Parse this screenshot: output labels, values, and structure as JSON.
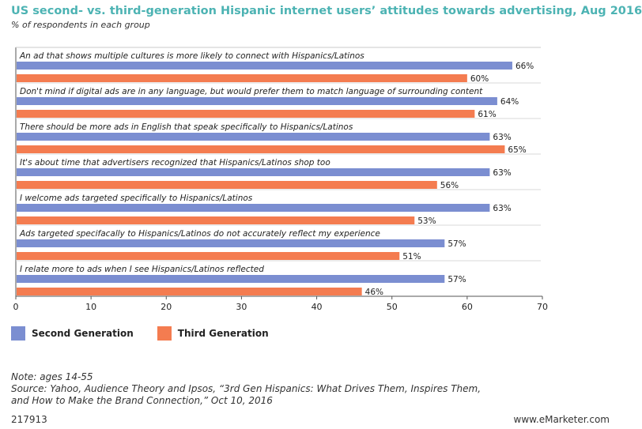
{
  "header": {
    "title": "US second- vs. third-generation Hispanic internet users’ attitudes towards advertising, Aug 2016",
    "subtitle": "% of respondents in each group"
  },
  "chart_data": {
    "type": "bar",
    "orientation": "horizontal",
    "categories": [
      "An ad that shows multiple cultures is more likely to connect with Hispanics/Latinos",
      "Don't mind if digital ads are in any language, but would prefer them to match language of surrounding content",
      "There should be more ads in English that speak specifically to Hispanics/Latinos",
      "It's about time that advertisers recognized that Hispanics/Latinos shop too",
      "I welcome ads targeted specifically to Hispanics/Latinos",
      "Ads targeted specifacally to Hispanics/Latinos do not accurately reflect my experience",
      "I relate more to ads when I see Hispanics/Latinos reflected"
    ],
    "series": [
      {
        "name": "Second Generation",
        "values": [
          66,
          64,
          63,
          63,
          63,
          57,
          57
        ],
        "color": "#7b8ed1"
      },
      {
        "name": "Third Generation",
        "values": [
          60,
          61,
          65,
          56,
          53,
          51,
          46
        ],
        "color": "#f47c50"
      }
    ],
    "xlim": [
      0,
      70
    ],
    "xticks": [
      "0",
      "10",
      "20",
      "30",
      "40",
      "50",
      "60",
      "70"
    ],
    "value_suffix": "%",
    "grid": false,
    "legend_position": "bottom-left"
  },
  "footer": {
    "note": "Note: ages 14-55",
    "source_line1": "Source: Yahoo, Audience Theory and Ipsos, “3rd Gen Hispanics: What Drives Them, Inspires Them,",
    "source_line2": "and How to Make the Brand Connection,” Oct 10, 2016",
    "chart_id": "217913",
    "brand": "www.eMarketer.com"
  }
}
